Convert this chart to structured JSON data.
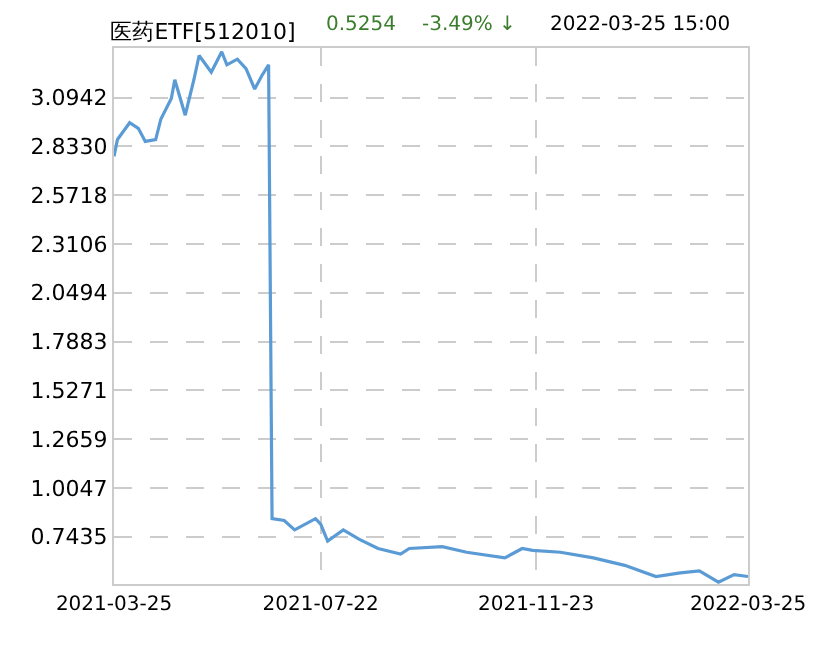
{
  "chart_data": {
    "type": "line",
    "title": "医药ETF[512010]",
    "annotations": [
      "0.5254",
      "-3.49% ↓",
      "2022-03-25 15:00"
    ],
    "x": [
      "2021-03-25",
      "2021-03-27",
      "2021-04-03",
      "2021-04-08",
      "2021-04-12",
      "2021-04-18",
      "2021-04-21",
      "2021-04-27",
      "2021-04-29",
      "2021-05-05",
      "2021-05-10",
      "2021-05-13",
      "2021-05-20",
      "2021-05-26",
      "2021-05-29",
      "2021-06-04",
      "2021-06-09",
      "2021-06-14",
      "2021-06-18",
      "2021-06-22",
      "2021-06-24",
      "2021-07-01",
      "2021-07-07",
      "2021-07-19",
      "2021-07-22",
      "2021-07-26",
      "2021-08-04",
      "2021-08-13",
      "2021-08-24",
      "2021-09-06",
      "2021-09-11",
      "2021-09-30",
      "2021-10-14",
      "2021-11-05",
      "2021-11-15",
      "2021-11-21",
      "2021-12-07",
      "2021-12-26",
      "2022-01-13",
      "2022-01-31",
      "2022-02-14",
      "2022-02-25",
      "2022-03-08",
      "2022-03-17",
      "2022-03-25"
    ],
    "series": [
      {
        "color": "#5b9bd5",
        "values": [
          2.78,
          2.87,
          2.96,
          2.93,
          2.86,
          2.87,
          2.98,
          3.09,
          3.19,
          3.0,
          3.19,
          3.32,
          3.23,
          3.34,
          3.27,
          3.3,
          3.25,
          3.14,
          3.21,
          3.27,
          0.84,
          0.83,
          0.78,
          0.84,
          0.81,
          0.72,
          0.78,
          0.73,
          0.68,
          0.65,
          0.68,
          0.69,
          0.66,
          0.63,
          0.68,
          0.67,
          0.66,
          0.63,
          0.59,
          0.53,
          0.55,
          0.56,
          0.5,
          0.54,
          0.53
        ]
      }
    ],
    "xlim": [
      "2021-03-25",
      "2022-03-25"
    ],
    "xticks": [
      "2021-03-25",
      "2021-07-22",
      "2021-11-23",
      "2022-03-25"
    ],
    "ylim": [
      0.49,
      3.36
    ],
    "yticks": [
      0.7435,
      1.0047,
      1.2659,
      1.5271,
      1.7883,
      2.0494,
      2.3106,
      2.5718,
      {
        "value": 2.833,
        "label": "2.8330"
      },
      3.0942
    ],
    "grid": true,
    "marker": "none",
    "line_style": "solid"
  }
}
